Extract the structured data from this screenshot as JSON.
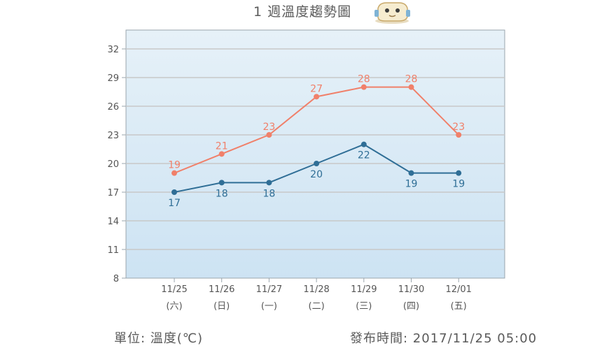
{
  "title": "1 週溫度趨勢圖",
  "footer": {
    "unit": "單位: 溫度(℃)",
    "published": "發布時間: 2017/11/25 05:00"
  },
  "colors": {
    "high": "#f0806a",
    "low": "#2f6e96",
    "plot_bg_top": "#e6f1f8",
    "plot_bg_bottom": "#cde3f3",
    "grid": "#c8c8c8"
  },
  "chart_data": {
    "type": "line",
    "categories": [
      "11/25",
      "11/26",
      "11/27",
      "11/28",
      "11/29",
      "11/30",
      "12/01"
    ],
    "weekdays": [
      "(六)",
      "(日)",
      "(一)",
      "(二)",
      "(三)",
      "(四)",
      "(五)"
    ],
    "yticks": [
      8,
      11,
      14,
      17,
      20,
      23,
      26,
      29,
      32
    ],
    "ylim": [
      8,
      32
    ],
    "grid": true,
    "series": [
      {
        "key": "high",
        "values": [
          19,
          21,
          23,
          27,
          28,
          28,
          23
        ]
      },
      {
        "key": "low",
        "values": [
          17,
          18,
          18,
          20,
          22,
          19,
          19
        ]
      }
    ]
  }
}
